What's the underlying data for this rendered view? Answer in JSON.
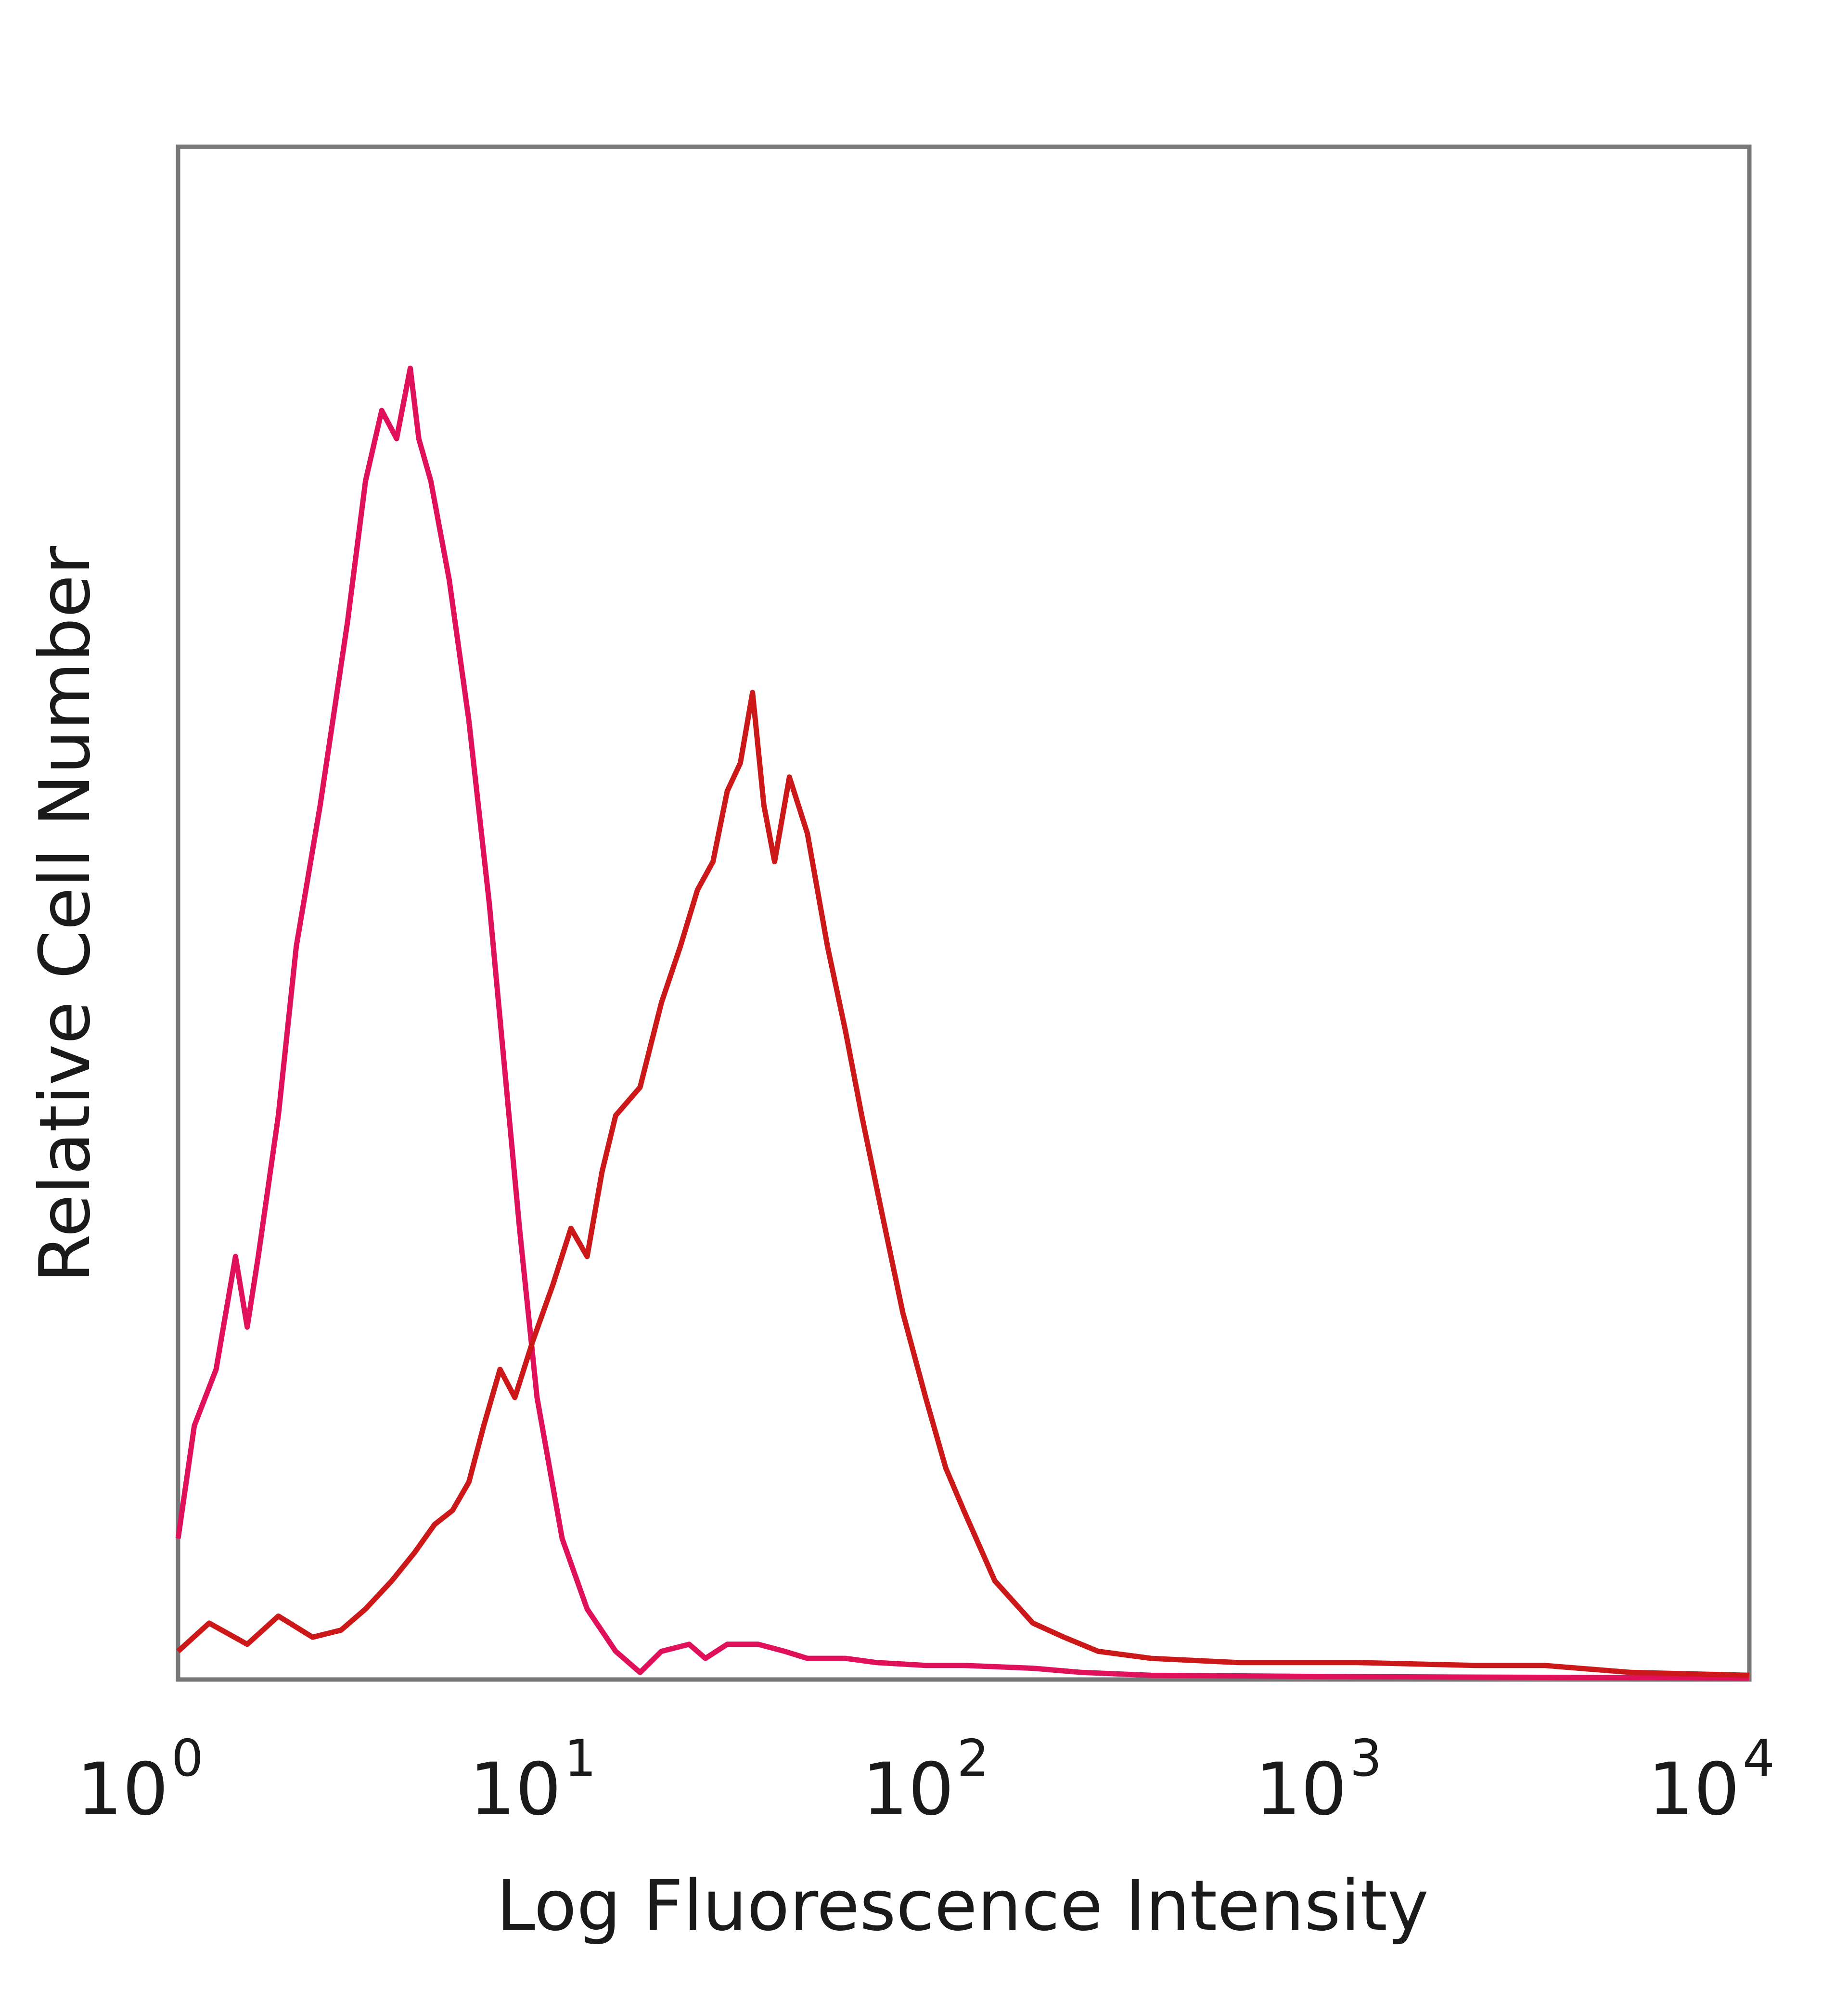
{
  "chart_data": {
    "type": "line",
    "title": "",
    "xlabel": "Log Fluorescence Intensity",
    "ylabel": "Relative Cell Number",
    "x_scale": "log",
    "xlim": [
      1,
      10000
    ],
    "ylim": [
      0,
      100
    ],
    "grid": false,
    "legend": "none",
    "x_ticks": [
      {
        "base": "10",
        "exp": "0",
        "value": 1
      },
      {
        "base": "10",
        "exp": "1",
        "value": 10
      },
      {
        "base": "10",
        "exp": "2",
        "value": 100
      },
      {
        "base": "10",
        "exp": "3",
        "value": 1000
      },
      {
        "base": "10",
        "exp": "4",
        "value": 10000
      }
    ],
    "series": [
      {
        "color": "#e0105a",
        "points": [
          [
            1.0,
            10
          ],
          [
            1.1,
            18
          ],
          [
            1.25,
            22
          ],
          [
            1.4,
            30
          ],
          [
            1.5,
            25
          ],
          [
            1.6,
            30
          ],
          [
            1.8,
            40
          ],
          [
            2.0,
            52
          ],
          [
            2.3,
            62
          ],
          [
            2.7,
            75
          ],
          [
            3.0,
            85
          ],
          [
            3.3,
            90
          ],
          [
            3.6,
            88
          ],
          [
            3.9,
            93
          ],
          [
            4.1,
            88
          ],
          [
            4.4,
            85
          ],
          [
            4.9,
            78
          ],
          [
            5.5,
            68
          ],
          [
            6.2,
            55
          ],
          [
            6.8,
            43
          ],
          [
            7.4,
            32
          ],
          [
            8.2,
            20
          ],
          [
            9.5,
            10
          ],
          [
            11,
            5
          ],
          [
            13,
            2
          ],
          [
            15,
            0.5
          ],
          [
            17,
            2
          ],
          [
            20,
            2.5
          ],
          [
            22,
            1.5
          ],
          [
            25,
            2.5
          ],
          [
            30,
            2.5
          ],
          [
            35,
            2
          ],
          [
            40,
            1.5
          ],
          [
            50,
            1.5
          ],
          [
            60,
            1.2
          ],
          [
            80,
            1
          ],
          [
            100,
            1
          ],
          [
            150,
            0.8
          ],
          [
            200,
            0.5
          ],
          [
            300,
            0.3
          ],
          [
            1000,
            0.2
          ],
          [
            10000,
            0.1
          ]
        ]
      },
      {
        "color": "#cc1818",
        "points": [
          [
            1.0,
            2
          ],
          [
            1.2,
            4
          ],
          [
            1.5,
            2.5
          ],
          [
            1.8,
            4.5
          ],
          [
            2.2,
            3
          ],
          [
            2.6,
            3.5
          ],
          [
            3.0,
            5
          ],
          [
            3.5,
            7
          ],
          [
            4.0,
            9
          ],
          [
            4.5,
            11
          ],
          [
            5.0,
            12
          ],
          [
            5.5,
            14
          ],
          [
            6.0,
            18
          ],
          [
            6.6,
            22
          ],
          [
            7.2,
            20
          ],
          [
            8.0,
            24
          ],
          [
            9.0,
            28
          ],
          [
            10,
            32
          ],
          [
            11,
            30
          ],
          [
            12,
            36
          ],
          [
            13,
            40
          ],
          [
            15,
            42
          ],
          [
            17,
            48
          ],
          [
            19,
            52
          ],
          [
            21,
            56
          ],
          [
            23,
            58
          ],
          [
            25,
            63
          ],
          [
            27,
            65
          ],
          [
            29,
            70
          ],
          [
            31,
            62
          ],
          [
            33,
            58
          ],
          [
            36,
            64
          ],
          [
            40,
            60
          ],
          [
            45,
            52
          ],
          [
            50,
            46
          ],
          [
            55,
            40
          ],
          [
            62,
            33
          ],
          [
            70,
            26
          ],
          [
            80,
            20
          ],
          [
            90,
            15
          ],
          [
            100,
            12
          ],
          [
            120,
            7
          ],
          [
            150,
            4
          ],
          [
            180,
            3
          ],
          [
            220,
            2
          ],
          [
            300,
            1.5
          ],
          [
            500,
            1.2
          ],
          [
            1000,
            1.2
          ],
          [
            2000,
            1
          ],
          [
            3000,
            1
          ],
          [
            5000,
            0.5
          ],
          [
            10000,
            0.3
          ]
        ]
      }
    ]
  }
}
